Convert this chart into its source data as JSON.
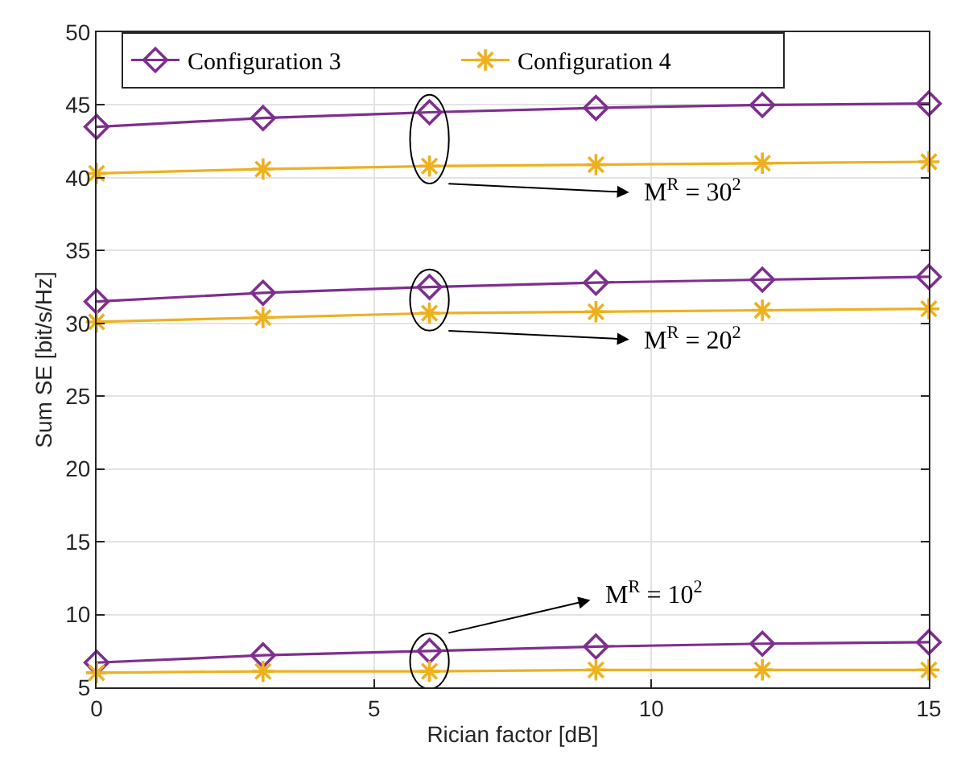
{
  "chart_data": {
    "type": "line",
    "xlabel": "Rician factor [dB]",
    "ylabel": "Sum SE [bit/s/Hz]",
    "x": [
      0,
      3,
      6,
      9,
      12,
      15
    ],
    "xlim": [
      0,
      15
    ],
    "xticks": [
      0,
      5,
      10,
      15
    ],
    "ylim": [
      5,
      50
    ],
    "yticks": [
      5,
      10,
      15,
      20,
      25,
      30,
      35,
      40,
      45,
      50
    ],
    "grid": true,
    "legend": "top left",
    "line_style": "solid",
    "series": [
      {
        "name": "Configuration 3",
        "color": "#7e2f8e",
        "marker": "diamond",
        "values": [
          43.5,
          44.1,
          44.5,
          44.8,
          45.0,
          45.1
        ]
      },
      {
        "name": "Configuration 4",
        "color": "#edb120",
        "marker": "cross",
        "values": [
          40.3,
          40.6,
          40.8,
          40.9,
          41.0,
          41.1
        ]
      },
      {
        "color": "#7e2f8e",
        "marker": "diamond",
        "values": [
          31.5,
          32.1,
          32.5,
          32.8,
          33.0,
          33.2
        ]
      },
      {
        "color": "#edb120",
        "marker": "cross",
        "values": [
          30.1,
          30.4,
          30.7,
          30.8,
          30.9,
          31.0
        ]
      },
      {
        "color": "#7e2f8e",
        "marker": "diamond",
        "values": [
          6.7,
          7.2,
          7.5,
          7.8,
          8.0,
          8.1
        ]
      },
      {
        "color": "#edb120",
        "marker": "cross",
        "values": [
          6.0,
          6.1,
          6.1,
          6.2,
          6.2,
          6.2
        ]
      }
    ],
    "annotations": [
      "M$^{R}$ = 30$^{2}$",
      "M$^{R}$ = 20$^{2}$",
      "M$^{R}$ = 10$^{2}$"
    ]
  }
}
